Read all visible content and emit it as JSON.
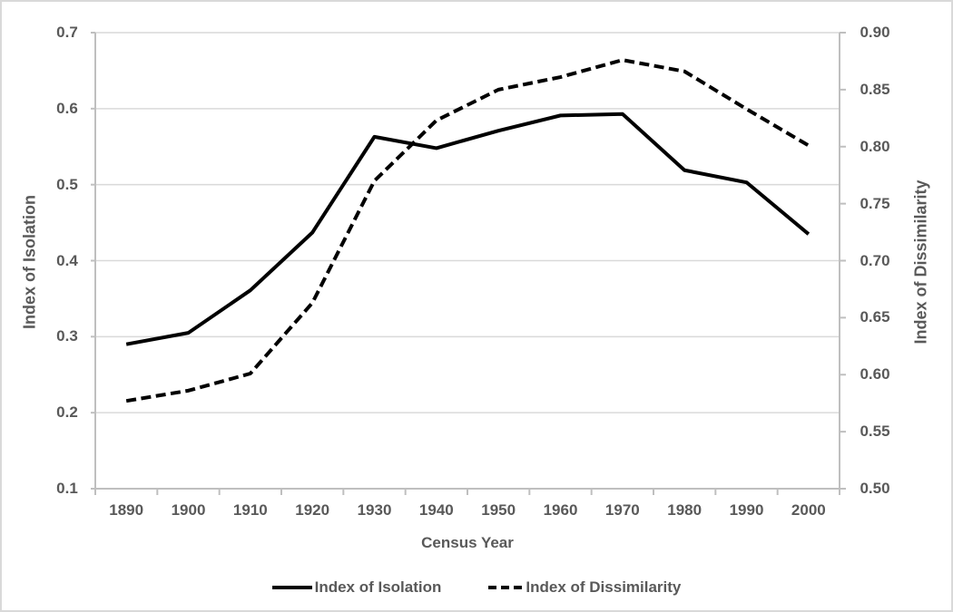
{
  "chart_data": {
    "type": "line",
    "title": "",
    "x_categories": [
      "1890",
      "1900",
      "1910",
      "1920",
      "1930",
      "1940",
      "1950",
      "1960",
      "1970",
      "1980",
      "1990",
      "2000"
    ],
    "xlabel": "Census Year",
    "series": [
      {
        "name": "Index of Isolation",
        "axis": "left",
        "line_style": "solid",
        "values": [
          0.29,
          0.305,
          0.361,
          0.437,
          0.563,
          0.548,
          0.571,
          0.591,
          0.593,
          0.519,
          0.503,
          0.435
        ]
      },
      {
        "name": "Index of Dissimilarity",
        "axis": "right",
        "line_style": "dashed",
        "values": [
          0.577,
          0.586,
          0.601,
          0.663,
          0.77,
          0.823,
          0.85,
          0.861,
          0.876,
          0.866,
          0.833,
          0.801
        ]
      }
    ],
    "left_axis": {
      "label": "Index of Isolation",
      "min": 0.1,
      "max": 0.7,
      "tick_labels": [
        "0.1",
        "0.2",
        "0.3",
        "0.4",
        "0.5",
        "0.6",
        "0.7"
      ]
    },
    "right_axis": {
      "label": "Index of Dissimilarity",
      "min": 0.5,
      "max": 0.9,
      "tick_labels": [
        "0.50",
        "0.55",
        "0.60",
        "0.65",
        "0.70",
        "0.75",
        "0.80",
        "0.85",
        "0.90"
      ]
    },
    "grid": true,
    "legend_position": "bottom",
    "legend": [
      {
        "label": "Index of Isolation",
        "style": "solid"
      },
      {
        "label": "Index of Dissimilarity",
        "style": "dashed"
      }
    ],
    "colors": {
      "line": "#000000",
      "text": "#595959",
      "gridline": "#d9d9d9",
      "axis_line": "#bfbfbf",
      "background": "#ffffff"
    }
  }
}
